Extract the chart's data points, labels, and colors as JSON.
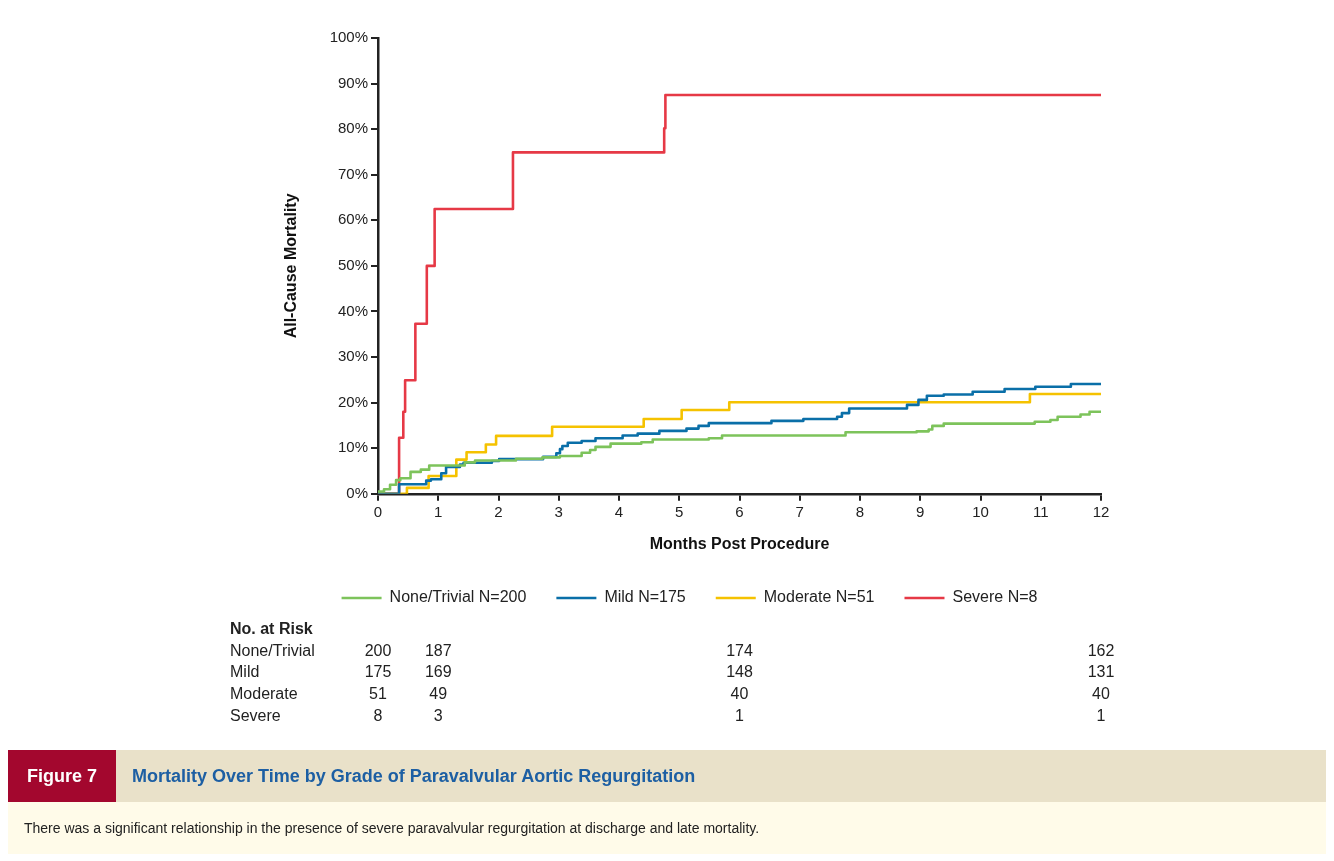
{
  "chart_data": {
    "type": "step",
    "title": "Mortality Over Time by Grade of Paravalvular Aortic Regurgitation",
    "subtitle": "There was a significant relationship in the presence of severe paravalvular regurgitation at discharge and late mortality.",
    "xlabel": "Months Post Procedure",
    "ylabel": "All-Cause Mortality",
    "xlim": [
      0,
      12
    ],
    "xticks": [
      0,
      1,
      2,
      3,
      4,
      5,
      6,
      7,
      8,
      9,
      10,
      11,
      12
    ],
    "ylim": [
      0,
      100
    ],
    "yticks": [
      {
        "value": 0,
        "label": "0%"
      },
      {
        "value": 10,
        "label": "10%"
      },
      {
        "value": 20,
        "label": "20%"
      },
      {
        "value": 30,
        "label": "30%"
      },
      {
        "value": 40,
        "label": "40%"
      },
      {
        "value": 50,
        "label": "50%"
      },
      {
        "value": 60,
        "label": "60%"
      },
      {
        "value": 70,
        "label": "70%"
      },
      {
        "value": 80,
        "label": "80%"
      },
      {
        "value": 90,
        "label": "90%"
      },
      {
        "value": 100,
        "label": "100%"
      }
    ],
    "grid": false,
    "legend": "bottom",
    "marker": "none",
    "line_style": "solid",
    "series": [
      {
        "name": "None/Trivial N=200",
        "color": "#7dc35b",
        "x": [
          0,
          0.1,
          0.2,
          0.3,
          0.37,
          0.54,
          0.71,
          0.85,
          1.44,
          1.61,
          2.29,
          2.73,
          3.02,
          3.38,
          3.52,
          3.61,
          3.86,
          4.37,
          4.56,
          5.49,
          5.71,
          7.76,
          8.94,
          9.14,
          9.2,
          9.39,
          10.9,
          11.16,
          11.28,
          11.66,
          11.81,
          12
        ],
        "values": [
          0.5,
          1,
          2,
          3,
          3.4,
          4.8,
          5.3,
          6.2,
          6.9,
          7.3,
          7.7,
          8,
          8.3,
          9,
          9.6,
          10.3,
          11,
          11.3,
          11.9,
          12.2,
          12.8,
          13.5,
          13.7,
          14.1,
          14.9,
          15.4,
          15.8,
          16.2,
          16.9,
          17.4,
          18,
          18
        ]
      },
      {
        "name": "Mild N=175",
        "color": "#0a6fa8",
        "x": [
          0,
          0.35,
          0.8,
          0.88,
          1.05,
          1.13,
          1.36,
          1.42,
          1.89,
          2.01,
          2.74,
          2.96,
          3.02,
          3.06,
          3.15,
          3.38,
          3.61,
          4.06,
          4.31,
          4.67,
          5.12,
          5.32,
          5.49,
          6.53,
          7.06,
          7.62,
          7.7,
          7.82,
          8.78,
          8.97,
          9.11,
          9.39,
          9.87,
          10.4,
          10.91,
          11.5,
          12
        ],
        "values": [
          0,
          2.1,
          2.9,
          3.2,
          4.5,
          5.9,
          6.4,
          6.8,
          7.2,
          7.6,
          8.1,
          8.9,
          9.8,
          10.5,
          11.2,
          11.6,
          12.2,
          12.8,
          13.2,
          13.8,
          14.3,
          14.9,
          15.5,
          16,
          16.4,
          16.9,
          17.7,
          18.7,
          19.5,
          20.6,
          21.5,
          21.8,
          22.4,
          23,
          23.5,
          24.1,
          24.1
        ]
      },
      {
        "name": "Moderate N=51",
        "color": "#f5c200",
        "x": [
          0,
          0.48,
          0.84,
          1.3,
          1.47,
          1.79,
          1.96,
          2.89,
          4.41,
          5.04,
          5.83,
          10.82,
          12
        ],
        "values": [
          0,
          1.3,
          3.9,
          7.5,
          9.1,
          10.8,
          12.7,
          14.7,
          16.4,
          18.4,
          20.1,
          21.9,
          21.9
        ]
      },
      {
        "name": "Severe N=8",
        "color": "#e63946",
        "x": [
          0,
          0.35,
          0.42,
          0.45,
          0.62,
          0.81,
          0.94,
          2.24,
          4.75,
          4.77,
          12
        ],
        "values": [
          0,
          12.3,
          18,
          24.9,
          37.3,
          50,
          62.5,
          74.9,
          80.2,
          87.5,
          87.5
        ]
      }
    ],
    "annotations": [
      "Figure 7",
      "No. at Risk",
      "None/Trivial",
      "200",
      "187",
      "174",
      "162",
      "Mild",
      "175",
      "169",
      "148",
      "131",
      "Moderate",
      "51",
      "49",
      "40",
      "40",
      "Severe",
      "8",
      "3",
      "1",
      "1"
    ]
  }
}
